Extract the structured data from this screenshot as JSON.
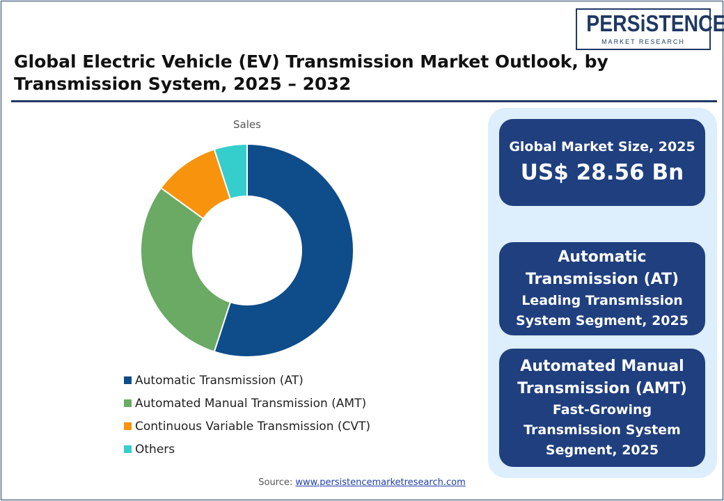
{
  "header": {
    "title": "Global Electric Vehicle (EV) Transmission Market Outlook, by Transmission System, 2025 – 2032"
  },
  "logo": {
    "word": "PERSiSTENCE",
    "sub": "MARKET RESEARCH"
  },
  "chart_data": {
    "type": "pie",
    "donut": true,
    "title": "Sales",
    "categories": [
      "Automatic Transmission (AT)",
      "Automated Manual Transmission (AMT)",
      "Continuous Variable Transmission (CVT)",
      "Others"
    ],
    "values": [
      55,
      30,
      10,
      5
    ],
    "unit": "%",
    "colors": [
      "#0f4c8a",
      "#6aaa64",
      "#f7930d",
      "#36cdcd"
    ],
    "legend_position": "bottom"
  },
  "cards": {
    "market_size": {
      "label": "Global Market Size, 2025",
      "value": "US$ 28.56 Bn"
    },
    "leading": {
      "name_line1": "Automatic",
      "name_line2": "Transmission (AT)",
      "desc_line1": "Leading Transmission",
      "desc_line2": "System Segment, 2025"
    },
    "growing": {
      "name_line1": "Automated Manual",
      "name_line2": "Transmission (AMT)",
      "desc_line1": "Fast-Growing",
      "desc_line2": "Transmission System",
      "desc_line3": "Segment, 2025"
    }
  },
  "footer": {
    "source_label": "Source:",
    "source_link": "www.persistencemarketresearch.com"
  },
  "colors": {
    "brand": "#1f3864",
    "card": "#1f3f7f",
    "panel": "#ddeefc"
  }
}
